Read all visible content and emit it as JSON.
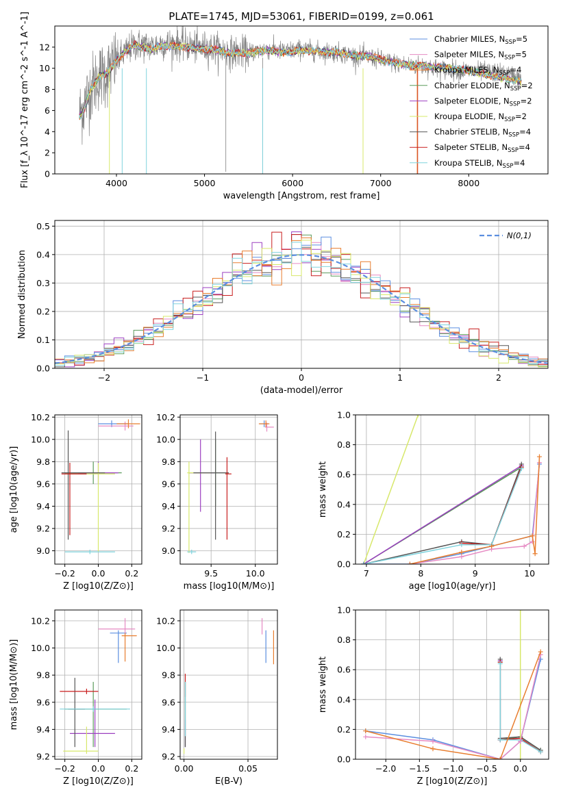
{
  "figure": {
    "title": "PLATE=1745, MJD=53061, FIBERID=0199, z=0.061"
  },
  "series_styles": [
    {
      "name": "Chabrier MILES",
      "nssp": "5",
      "color": "#5b8ee0"
    },
    {
      "name": "Salpeter MILES",
      "nssp": "5",
      "color": "#e68ac3"
    },
    {
      "name": "Kroupa MILES",
      "nssp": "4",
      "color": "#e87d2e"
    },
    {
      "name": "Chabrier ELODIE",
      "nssp": "2",
      "color": "#5a9a5a"
    },
    {
      "name": "Salpeter ELODIE",
      "nssp": "2",
      "color": "#9b3fc0"
    },
    {
      "name": "Kroupa ELODIE",
      "nssp": "2",
      "color": "#d7e86a"
    },
    {
      "name": "Chabrier STELIB",
      "nssp": "4",
      "color": "#555555"
    },
    {
      "name": "Salpeter STELIB",
      "nssp": "4",
      "color": "#c81d1d"
    },
    {
      "name": "Kroupa STELIB",
      "nssp": "4",
      "color": "#7fd3dd"
    }
  ],
  "chart_data": [
    {
      "id": "spectrum",
      "type": "line",
      "title": "PLATE=1745, MJD=53061, FIBERID=0199, z=0.061",
      "xlabel": "wavelength [Angstrom, rest frame]",
      "ylabel": "Flux [f_λ 10^-17 erg cm^-2 s^-1 A^-1]",
      "xlim": [
        3300,
        8900
      ],
      "ylim": [
        0,
        14
      ],
      "xticks": [
        4000,
        5000,
        6000,
        7000,
        8000
      ],
      "yticks": [
        0,
        2,
        4,
        6,
        8,
        10,
        12
      ],
      "grid": false,
      "legend": "top-right",
      "data_color": "#808080",
      "data_anchor_x": [
        3580,
        3620,
        3700,
        3800,
        3900,
        4000,
        4100,
        4200,
        4300,
        4400,
        4500,
        4700,
        4900,
        5100,
        5300,
        5500,
        5700,
        5900,
        6100,
        6300,
        6500,
        6700,
        6900,
        7100,
        7300,
        7500,
        7700,
        7900,
        8100,
        8300,
        8500,
        8600
      ],
      "data_anchor_y": [
        5.7,
        6.2,
        8.0,
        9.2,
        9.6,
        10.7,
        11.5,
        12.2,
        12.2,
        12.0,
        12.3,
        12.3,
        12.0,
        11.9,
        11.5,
        11.5,
        11.8,
        11.6,
        11.8,
        11.6,
        11.5,
        11.2,
        11.0,
        10.6,
        10.3,
        10.2,
        9.9,
        9.8,
        9.7,
        9.6,
        9.3,
        9.0
      ],
      "model_anchor_x": [
        3580,
        3620,
        3700,
        3800,
        3900,
        4000,
        4100,
        4200,
        4300,
        4400,
        4500,
        4700,
        4900,
        5100,
        5300,
        5500,
        5700,
        5900,
        6100,
        6300,
        6500,
        6700,
        6900,
        7100,
        7300,
        7500,
        7700,
        7900,
        8100,
        8300,
        8500,
        8600
      ],
      "model_anchor_y": [
        5.5,
        5.9,
        7.8,
        9.2,
        9.6,
        10.7,
        11.6,
        12.2,
        12.0,
        11.8,
        12.1,
        12.1,
        11.9,
        11.8,
        11.4,
        11.4,
        11.7,
        11.5,
        11.7,
        11.6,
        11.5,
        11.2,
        11.1,
        10.6,
        10.3,
        10.2,
        10.1,
        9.9,
        9.6,
        9.2,
        8.9,
        8.7
      ]
    },
    {
      "id": "residuals",
      "type": "step",
      "xlabel": "(data-model)/error",
      "ylabel": "Normed distribution",
      "xlim": [
        -2.5,
        2.5
      ],
      "ylim": [
        0,
        0.52
      ],
      "xticks": [
        -2,
        -1,
        0,
        1,
        2
      ],
      "yticks": [
        0.0,
        0.1,
        0.2,
        0.3,
        0.4,
        0.5
      ],
      "grid": true,
      "legend": "top-right",
      "reference": {
        "label": "N(0,1)",
        "mean": 0,
        "sigma": 1,
        "color": "#5b8ee0"
      },
      "bin_width": 0.1
    },
    {
      "id": "age-vs-Z",
      "type": "errorbar",
      "xlabel": "Z [log10(Z/Z⊙)]",
      "ylabel": "age  [log10(age/yr)]",
      "xlim": [
        -0.26,
        0.26
      ],
      "ylim": [
        8.88,
        10.22
      ],
      "xticks": [
        -0.2,
        0.0,
        0.2
      ],
      "yticks": [
        9.0,
        9.2,
        9.4,
        9.6,
        9.8,
        10.0,
        10.2
      ],
      "grid": true,
      "points": [
        {
          "s": 0,
          "x": 0.08,
          "y": 10.14,
          "xerr": [
            0.08,
            0.1
          ],
          "yerr": [
            0.03,
            0.03
          ]
        },
        {
          "s": 1,
          "x": 0.16,
          "y": 10.12,
          "xerr": [
            0.16,
            0.05
          ],
          "yerr": [
            0.04,
            0.04
          ]
        },
        {
          "s": 2,
          "x": 0.18,
          "y": 10.14,
          "xerr": [
            0.07,
            0.07
          ],
          "yerr": [
            0.04,
            0.04
          ]
        },
        {
          "s": 3,
          "x": -0.03,
          "y": 9.7,
          "xerr": [
            0.17,
            0.17
          ],
          "yerr": [
            0.1,
            0.1
          ]
        },
        {
          "s": 4,
          "x": 0.0,
          "y": 9.7,
          "xerr": [
            0.12,
            0.12
          ],
          "yerr": [
            0.1,
            0.1
          ]
        },
        {
          "s": 5,
          "x": 0.0,
          "y": 9.69,
          "xerr": [
            0.2,
            0.1
          ],
          "yerr": [
            0.7,
            0.1
          ]
        },
        {
          "s": 6,
          "x": -0.18,
          "y": 9.7,
          "xerr": [
            0.04,
            0.22
          ],
          "yerr": [
            0.6,
            0.38
          ]
        },
        {
          "s": 7,
          "x": -0.17,
          "y": 9.69,
          "xerr": [
            0.05,
            0.1
          ],
          "yerr": [
            0.55,
            0.1
          ]
        },
        {
          "s": 8,
          "x": -0.05,
          "y": 8.99,
          "xerr": [
            0.15,
            0.15
          ],
          "yerr": [
            0.02,
            0.02
          ]
        }
      ]
    },
    {
      "id": "age-vs-mass",
      "type": "errorbar",
      "xlabel": "mass [log10(M/M⊙)]",
      "ylabel": "",
      "xlim": [
        9.15,
        10.25
      ],
      "ylim": [
        8.88,
        10.22
      ],
      "xticks": [
        9.5,
        10.0
      ],
      "yticks": [
        9.0,
        9.2,
        9.4,
        9.6,
        9.8,
        10.0,
        10.2
      ],
      "grid": true,
      "points": [
        {
          "s": 0,
          "x": 10.1,
          "y": 10.14,
          "xerr": [
            0.05,
            0.05
          ],
          "yerr": [
            0.03,
            0.03
          ]
        },
        {
          "s": 1,
          "x": 10.13,
          "y": 10.11,
          "xerr": [
            0.02,
            0.08
          ],
          "yerr": [
            0.04,
            0.04
          ]
        },
        {
          "s": 2,
          "x": 10.12,
          "y": 10.14,
          "xerr": [
            0.08,
            0.04
          ],
          "yerr": [
            0.03,
            0.03
          ]
        },
        {
          "s": 3,
          "x": 9.55,
          "y": 9.7,
          "xerr": [
            0.3,
            0.15
          ],
          "yerr": [
            0.3,
            0.3
          ]
        },
        {
          "s": 4,
          "x": 9.38,
          "y": 9.7,
          "xerr": [
            0.13,
            0.15
          ],
          "yerr": [
            0.35,
            0.3
          ]
        },
        {
          "s": 5,
          "x": 9.25,
          "y": 9.7,
          "xerr": [
            0.02,
            0.25
          ],
          "yerr": [
            0.72,
            0.1
          ]
        },
        {
          "s": 6,
          "x": 9.55,
          "y": 9.7,
          "xerr": [
            0.25,
            0.15
          ],
          "yerr": [
            0.6,
            0.37
          ]
        },
        {
          "s": 7,
          "x": 9.68,
          "y": 9.69,
          "xerr": [
            0.02,
            0.05
          ],
          "yerr": [
            0.59,
            0.15
          ]
        },
        {
          "s": 8,
          "x": 9.28,
          "y": 8.99,
          "xerr": [
            0.05,
            0.05
          ],
          "yerr": [
            0.02,
            0.02
          ]
        }
      ]
    },
    {
      "id": "weight-vs-age",
      "type": "line",
      "xlabel": "age  [log10(age/yr)]",
      "ylabel": "mass weight",
      "xlim": [
        6.8,
        10.35
      ],
      "ylim": [
        0,
        1
      ],
      "xticks": [
        7,
        8,
        9,
        10
      ],
      "yticks": [
        0.0,
        0.2,
        0.4,
        0.6,
        0.8,
        1.0
      ],
      "grid": true,
      "lines": [
        {
          "s": 0,
          "x": [
            6.95,
            7.8,
            8.75,
            9.3,
            10.05,
            10.18
          ],
          "y": [
            0.0,
            0.0,
            0.07,
            0.12,
            0.19,
            0.67
          ]
        },
        {
          "s": 1,
          "x": [
            7.8,
            8.75,
            9.3,
            9.9,
            10.05,
            10.18
          ],
          "y": [
            0.0,
            0.05,
            0.1,
            0.12,
            0.15,
            0.68
          ]
        },
        {
          "s": 2,
          "x": [
            7.8,
            8.75,
            9.3,
            10.05,
            10.1,
            10.18
          ],
          "y": [
            0.0,
            0.08,
            0.12,
            0.19,
            0.07,
            0.72
          ]
        },
        {
          "s": 3,
          "x": [
            6.95,
            9.85
          ],
          "y": [
            0.0,
            0.65
          ]
        },
        {
          "s": 4,
          "x": [
            6.95,
            9.85
          ],
          "y": [
            0.0,
            0.66
          ]
        },
        {
          "s": 5,
          "x": [
            6.95,
            7.95
          ],
          "y": [
            0.0,
            1.0
          ]
        },
        {
          "s": 6,
          "x": [
            6.95,
            8.75,
            9.3,
            9.85
          ],
          "y": [
            0.0,
            0.15,
            0.13,
            0.67
          ]
        },
        {
          "s": 7,
          "x": [
            8.75,
            9.3,
            9.85
          ],
          "y": [
            0.14,
            0.13,
            0.65
          ]
        },
        {
          "s": 8,
          "x": [
            6.95,
            8.75,
            9.3,
            9.85
          ],
          "y": [
            0.0,
            0.13,
            0.13,
            0.64
          ]
        }
      ]
    },
    {
      "id": "mass-vs-Z",
      "type": "errorbar",
      "xlabel": "Z [log10(Z/Z⊙)]",
      "ylabel": "mass [log10(M/M⊙)]",
      "xlim": [
        -0.26,
        0.26
      ],
      "ylim": [
        9.18,
        10.28
      ],
      "xticks": [
        -0.2,
        0.0,
        0.2
      ],
      "yticks": [
        9.2,
        9.4,
        9.6,
        9.8,
        10.0,
        10.2
      ],
      "grid": true,
      "points": [
        {
          "s": 0,
          "x": 0.12,
          "y": 10.11,
          "xerr": [
            0.05,
            0.05
          ],
          "yerr": [
            0.22,
            0.02
          ]
        },
        {
          "s": 1,
          "x": 0.16,
          "y": 10.14,
          "xerr": [
            0.16,
            0.06
          ],
          "yerr": [
            0.04,
            0.08
          ]
        },
        {
          "s": 2,
          "x": 0.16,
          "y": 10.09,
          "xerr": [
            0.02,
            0.07
          ],
          "yerr": [
            0.19,
            0.02
          ]
        },
        {
          "s": 3,
          "x": -0.03,
          "y": 9.55,
          "xerr": [
            0.17,
            0.2
          ],
          "yerr": [
            0.28,
            0.2
          ]
        },
        {
          "s": 4,
          "x": -0.02,
          "y": 9.37,
          "xerr": [
            0.15,
            0.12
          ],
          "yerr": [
            0.1,
            0.25
          ]
        },
        {
          "s": 5,
          "x": -0.07,
          "y": 9.24,
          "xerr": [
            0.14,
            0.07
          ],
          "yerr": [
            0.02,
            0.18
          ]
        },
        {
          "s": 6,
          "x": -0.14,
          "y": 9.55,
          "xerr": [
            0.04,
            0.06
          ],
          "yerr": [
            0.28,
            0.23
          ]
        },
        {
          "s": 7,
          "x": -0.07,
          "y": 9.68,
          "xerr": [
            0.16,
            0.07
          ],
          "yerr": [
            0.02,
            0.02
          ]
        },
        {
          "s": 8,
          "x": -0.03,
          "y": 9.55,
          "xerr": [
            0.2,
            0.22
          ],
          "yerr": [
            0.02,
            0.02
          ]
        }
      ]
    },
    {
      "id": "mass-vs-EBV",
      "type": "errorbar",
      "xlabel": "E(B-V)",
      "ylabel": "",
      "xlim": [
        -0.003,
        0.073
      ],
      "ylim": [
        9.18,
        10.28
      ],
      "xticks": [
        0.0,
        0.05
      ],
      "yticks": [
        9.2,
        9.4,
        9.6,
        9.8,
        10.0,
        10.2
      ],
      "grid": true,
      "points": [
        {
          "s": 0,
          "x": 0.064,
          "y": 10.11,
          "xerr": [
            0.0,
            0.0
          ],
          "yerr": [
            0.22,
            0.02
          ]
        },
        {
          "s": 1,
          "x": 0.061,
          "y": 10.16,
          "xerr": [
            0.0,
            0.0
          ],
          "yerr": [
            0.06,
            0.06
          ]
        },
        {
          "s": 2,
          "x": 0.07,
          "y": 10.0,
          "xerr": [
            0.0,
            0.0
          ],
          "yerr": [
            0.12,
            0.13
          ]
        },
        {
          "s": 3,
          "x": 0.001,
          "y": 9.55,
          "xerr": [
            0.0,
            0.0
          ],
          "yerr": [
            0.28,
            0.2
          ]
        },
        {
          "s": 4,
          "x": 0.001,
          "y": 9.37,
          "xerr": [
            0.0,
            0.0
          ],
          "yerr": [
            0.1,
            0.1
          ]
        },
        {
          "s": 5,
          "x": 0.0,
          "y": 9.24,
          "xerr": [
            0.0,
            0.0
          ],
          "yerr": [
            0.02,
            0.02
          ]
        },
        {
          "s": 6,
          "x": 0.001,
          "y": 9.55,
          "xerr": [
            0.0,
            0.0
          ],
          "yerr": [
            0.28,
            0.2
          ]
        },
        {
          "s": 7,
          "x": 0.001,
          "y": 9.7,
          "xerr": [
            0.0,
            0.0
          ],
          "yerr": [
            0.06,
            0.11
          ]
        },
        {
          "s": 8,
          "x": 0.001,
          "y": 9.55,
          "xerr": [
            0.0,
            0.0
          ],
          "yerr": [
            0.2,
            0.2
          ]
        }
      ]
    },
    {
      "id": "weight-vs-Z",
      "type": "line",
      "xlabel": "Z [log10(Z/Z⊙)]",
      "ylabel": "mass weight",
      "xlim": [
        -2.45,
        0.42
      ],
      "ylim": [
        0,
        1
      ],
      "xticks": [
        -2.0,
        -1.5,
        -1.0,
        -0.5,
        0.0
      ],
      "yticks": [
        0.0,
        0.2,
        0.4,
        0.6,
        0.8,
        1.0
      ],
      "grid": true,
      "lines": [
        {
          "s": 0,
          "x": [
            -2.3,
            -1.3,
            -0.3,
            0.0,
            0.3
          ],
          "y": [
            0.19,
            0.13,
            0.0,
            0.12,
            0.67
          ]
        },
        {
          "s": 1,
          "x": [
            -2.3,
            -1.3,
            -0.3,
            0.0,
            0.3
          ],
          "y": [
            0.15,
            0.12,
            0.0,
            0.12,
            0.7
          ]
        },
        {
          "s": 2,
          "x": [
            -2.3,
            -1.3,
            -0.3,
            0.3
          ],
          "y": [
            0.19,
            0.07,
            0.0,
            0.72
          ]
        },
        {
          "s": 3,
          "x": [
            -0.3,
            -0.3,
            0.0,
            0.3
          ],
          "y": [
            0.65,
            0.13,
            0.15,
            0.06
          ]
        },
        {
          "s": 4,
          "x": [
            -0.3,
            -0.3,
            0.0
          ],
          "y": [
            0.66,
            0.13,
            0.14
          ]
        },
        {
          "s": 5,
          "x": [
            0.0,
            0.0
          ],
          "y": [
            0.0,
            1.0
          ]
        },
        {
          "s": 6,
          "x": [
            -0.3,
            -0.3,
            0.0,
            0.3
          ],
          "y": [
            0.67,
            0.14,
            0.15,
            0.06
          ]
        },
        {
          "s": 7,
          "x": [
            -0.3,
            -0.3,
            0.0,
            0.3
          ],
          "y": [
            0.65,
            0.13,
            0.14,
            0.05
          ]
        },
        {
          "s": 8,
          "x": [
            -0.3,
            -0.3,
            0.0,
            0.3
          ],
          "y": [
            0.64,
            0.13,
            0.13,
            0.05
          ]
        }
      ]
    }
  ]
}
